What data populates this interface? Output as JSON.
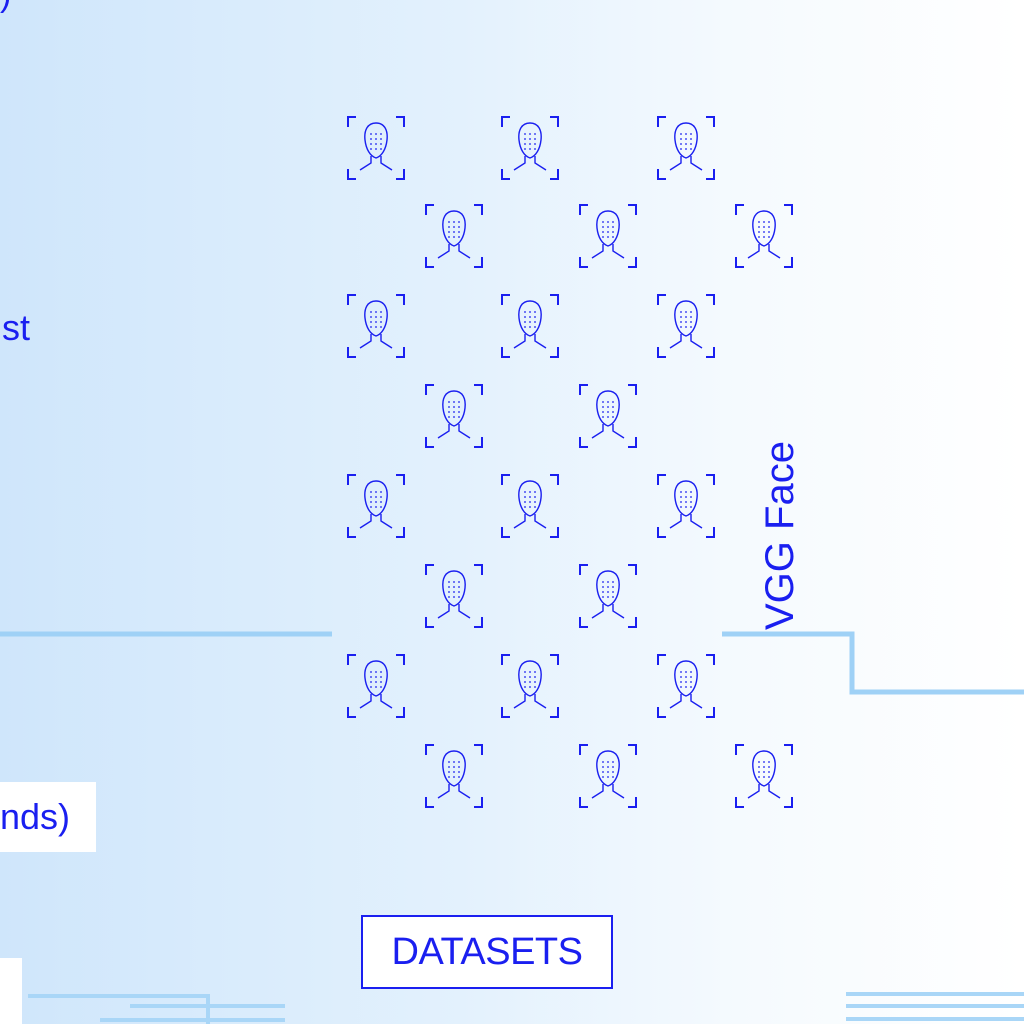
{
  "datasets_label": "DATASETS",
  "vertical_label": "VGG Face",
  "edge_fragments": {
    "top": ")",
    "middle": "st",
    "lower": "nds)"
  },
  "icon": "face-recognition-icon",
  "colors": {
    "accent": "#1a1ff0",
    "line": "#9fd1f6",
    "background_left": "#cfe6fb",
    "background_right": "#ffffff"
  }
}
